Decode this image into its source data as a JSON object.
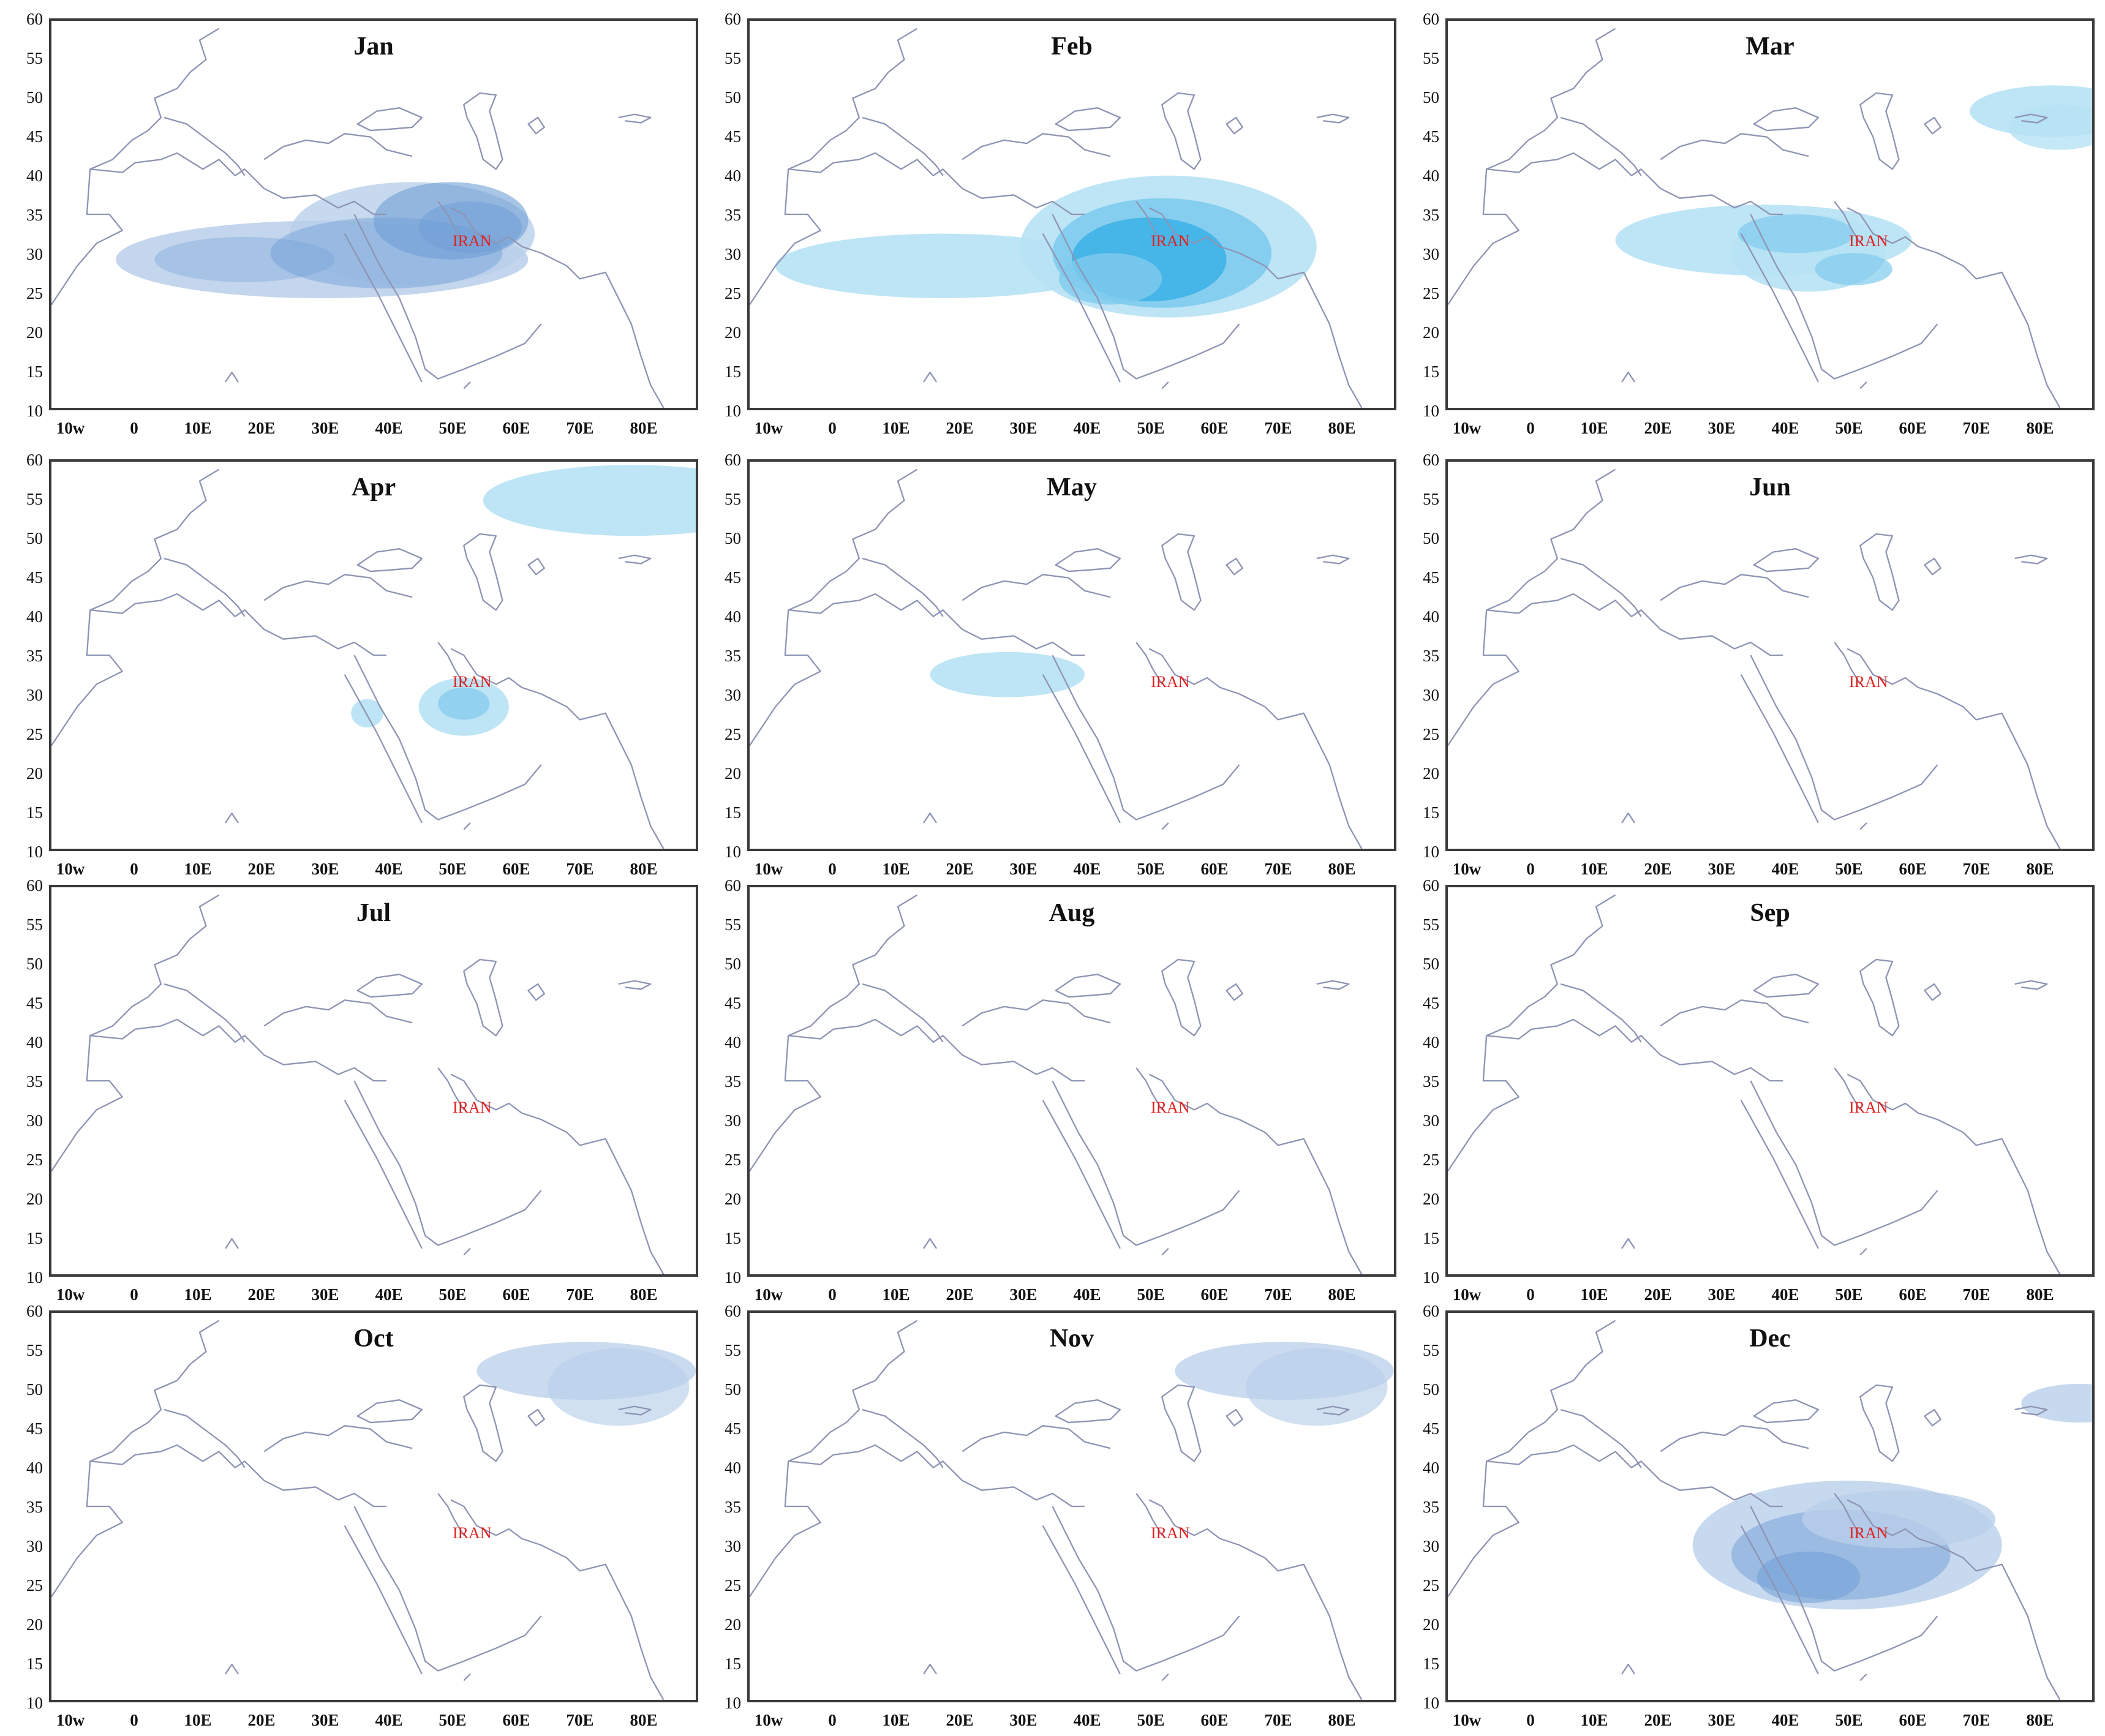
{
  "figure": {
    "y_ticks": [
      "60",
      "55",
      "50",
      "45",
      "40",
      "35",
      "30",
      "25",
      "20",
      "15",
      "10"
    ],
    "x_ticks": [
      "10w",
      "0",
      "10E",
      "20E",
      "30E",
      "40E",
      "50E",
      "60E",
      "70E",
      "80E"
    ],
    "country_label": "IRAN",
    "colors": {
      "coast": "#8e94b4",
      "shade_light": "#b7e2f4",
      "shade_mid": "#7fcbee",
      "shade_deep": "#3fb3e6",
      "shade_blue_light": "#b9cfea",
      "shade_blue_deep": "#6f9ed6",
      "label": "#e02020"
    },
    "panels": [
      {
        "month": "Jan",
        "shading": "winter-belt-blue"
      },
      {
        "month": "Feb",
        "shading": "winter-belt-cyan"
      },
      {
        "month": "Mar",
        "shading": "spring-cyan"
      },
      {
        "month": "Apr",
        "shading": "gulf-cyan"
      },
      {
        "month": "May",
        "shading": "libya-cyan"
      },
      {
        "month": "Jun",
        "shading": "none"
      },
      {
        "month": "Jul",
        "shading": "none"
      },
      {
        "month": "Aug",
        "shading": "none"
      },
      {
        "month": "Sep",
        "shading": "none"
      },
      {
        "month": "Oct",
        "shading": "northeast-blue"
      },
      {
        "month": "Nov",
        "shading": "northeast-blue"
      },
      {
        "month": "Dec",
        "shading": "dec-blue"
      }
    ]
  }
}
